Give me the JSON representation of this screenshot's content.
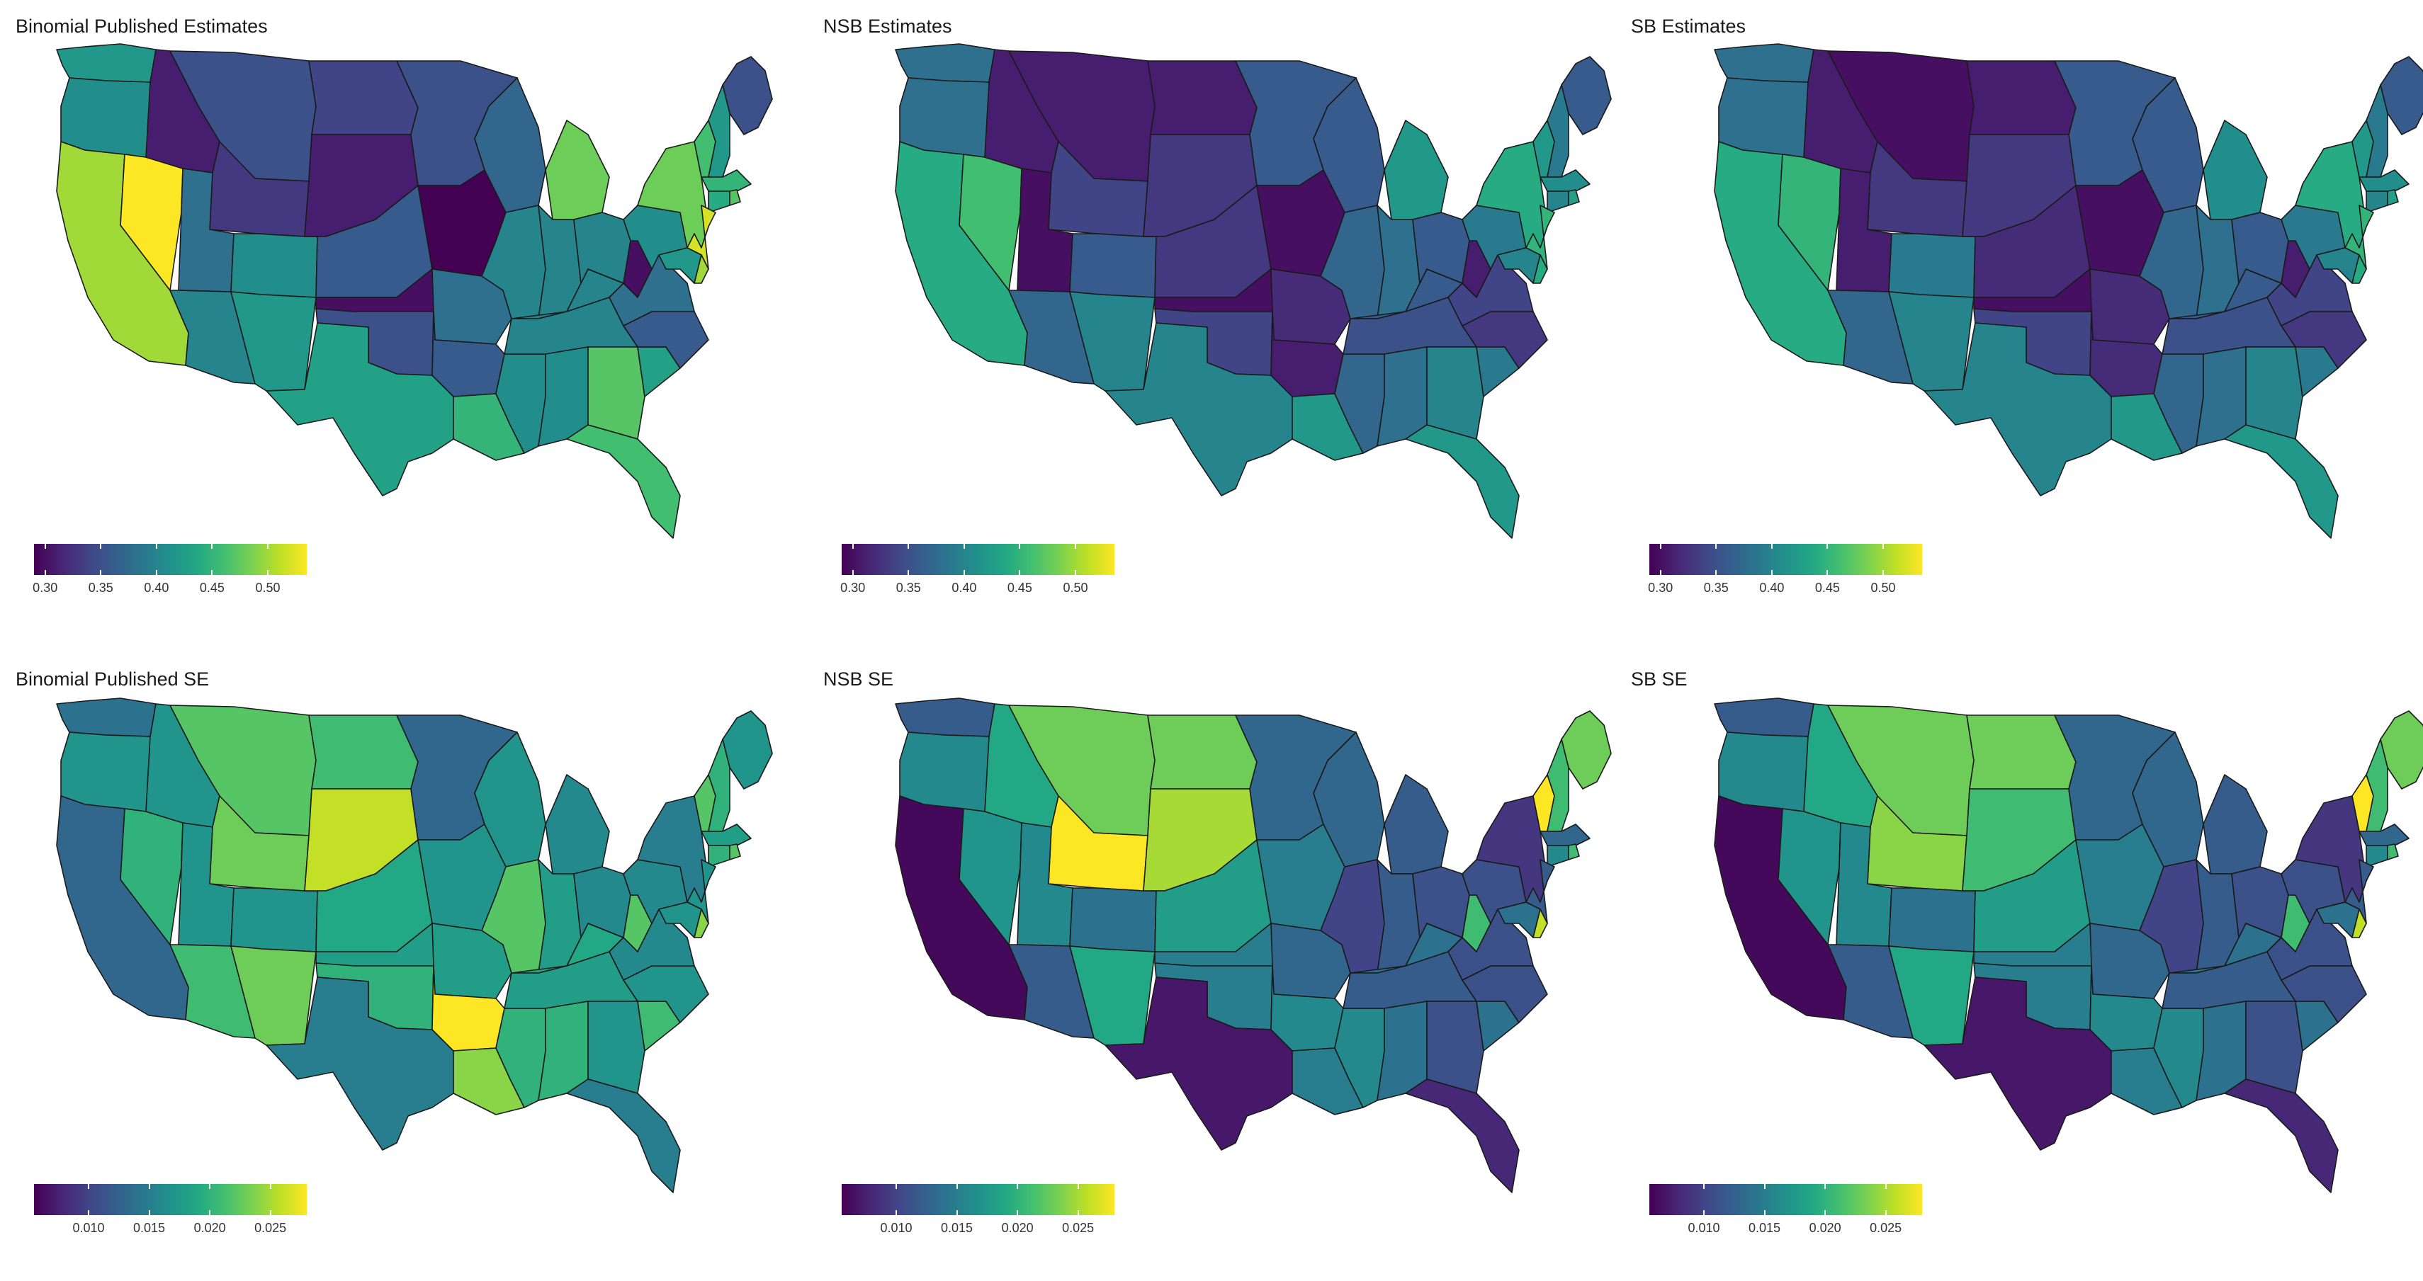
{
  "panels": [
    {
      "title": "Binomial Published Estimates",
      "metric": "estimate",
      "variant": "pub"
    },
    {
      "title": "NSB Estimates",
      "metric": "estimate",
      "variant": "nsb"
    },
    {
      "title": "SB Estimates",
      "metric": "estimate",
      "variant": "sb"
    },
    {
      "title": "Binomial Published SE",
      "metric": "se",
      "variant": "pub"
    },
    {
      "title": "NSB SE",
      "metric": "se",
      "variant": "nsb"
    },
    {
      "title": "SB SE",
      "metric": "se",
      "variant": "sb"
    }
  ],
  "legends": {
    "estimate": {
      "min": 0.29,
      "max": 0.535,
      "ticks": [
        "0.30",
        "0.35",
        "0.40",
        "0.45",
        "0.50"
      ]
    },
    "se": {
      "min": 0.0055,
      "max": 0.028,
      "ticks": [
        "0.010",
        "0.015",
        "0.020",
        "0.025"
      ]
    }
  },
  "colors": {
    "palette": [
      "#440154",
      "#482475",
      "#414487",
      "#355f8d",
      "#2a788e",
      "#21918c",
      "#22a884",
      "#44bf70",
      "#7ad151",
      "#bddf26",
      "#fde725"
    ],
    "state_border": "#1a1a1a",
    "background": "#ffffff"
  },
  "chart_data": {
    "type": "choropleth",
    "regions": [
      "WA",
      "OR",
      "CA",
      "NV",
      "ID",
      "MT",
      "WY",
      "UT",
      "AZ",
      "CO",
      "NM",
      "ND",
      "SD",
      "NE",
      "KS",
      "OK",
      "TX",
      "MN",
      "IA",
      "MO",
      "AR",
      "LA",
      "WI",
      "IL",
      "MS",
      "MI",
      "IN",
      "KY",
      "TN",
      "AL",
      "OH",
      "GA",
      "FL",
      "WV",
      "SC",
      "NC",
      "VA",
      "PA",
      "NY",
      "ME",
      "VT",
      "NH",
      "MA",
      "CT",
      "NJ",
      "MD",
      "DE",
      "RI"
    ],
    "values": {
      "estimate_pub": {
        "WA": 0.42,
        "OR": 0.41,
        "CA": 0.5,
        "NV": 0.535,
        "ID": 0.31,
        "MT": 0.35,
        "WY": 0.33,
        "UT": 0.38,
        "AZ": 0.4,
        "CO": 0.41,
        "NM": 0.42,
        "ND": 0.34,
        "SD": 0.31,
        "NE": 0.36,
        "KS": 0.3,
        "OK": 0.35,
        "TX": 0.43,
        "MN": 0.35,
        "IA": 0.29,
        "MO": 0.38,
        "AR": 0.36,
        "LA": 0.45,
        "WI": 0.37,
        "IL": 0.4,
        "MS": 0.41,
        "MI": 0.48,
        "IN": 0.4,
        "KY": 0.4,
        "TN": 0.4,
        "AL": 0.41,
        "OH": 0.4,
        "GA": 0.47,
        "FL": 0.46,
        "WV": 0.3,
        "SC": 0.43,
        "NC": 0.36,
        "VA": 0.38,
        "PA": 0.41,
        "NY": 0.48,
        "ME": 0.35,
        "VT": 0.46,
        "NH": 0.42,
        "MA": 0.45,
        "CT": 0.44,
        "NJ": 0.52,
        "MD": 0.42,
        "DE": 0.5,
        "RI": 0.47
      },
      "estimate_nsb": {
        "WA": 0.38,
        "OR": 0.38,
        "CA": 0.44,
        "NV": 0.46,
        "ID": 0.31,
        "MT": 0.31,
        "WY": 0.34,
        "UT": 0.3,
        "AZ": 0.37,
        "CO": 0.36,
        "NM": 0.4,
        "ND": 0.31,
        "SD": 0.33,
        "NE": 0.33,
        "KS": 0.3,
        "OK": 0.34,
        "TX": 0.4,
        "MN": 0.36,
        "IA": 0.3,
        "MO": 0.32,
        "AR": 0.31,
        "LA": 0.42,
        "WI": 0.36,
        "IL": 0.37,
        "MS": 0.37,
        "MI": 0.42,
        "IN": 0.38,
        "KY": 0.36,
        "TN": 0.35,
        "AL": 0.38,
        "OH": 0.36,
        "GA": 0.4,
        "FL": 0.42,
        "WV": 0.31,
        "SC": 0.39,
        "NC": 0.33,
        "VA": 0.34,
        "PA": 0.39,
        "NY": 0.44,
        "ME": 0.36,
        "VT": 0.42,
        "NH": 0.39,
        "MA": 0.41,
        "CT": 0.4,
        "NJ": 0.45,
        "MD": 0.4,
        "DE": 0.44,
        "RI": 0.43
      },
      "estimate_sb": {
        "WA": 0.38,
        "OR": 0.38,
        "CA": 0.44,
        "NV": 0.45,
        "ID": 0.31,
        "MT": 0.3,
        "WY": 0.33,
        "UT": 0.31,
        "AZ": 0.37,
        "CO": 0.39,
        "NM": 0.4,
        "ND": 0.31,
        "SD": 0.33,
        "NE": 0.32,
        "KS": 0.3,
        "OK": 0.34,
        "TX": 0.4,
        "MN": 0.36,
        "IA": 0.3,
        "MO": 0.32,
        "AR": 0.32,
        "LA": 0.42,
        "WI": 0.36,
        "IL": 0.37,
        "MS": 0.37,
        "MI": 0.41,
        "IN": 0.38,
        "KY": 0.36,
        "TN": 0.35,
        "AL": 0.38,
        "OH": 0.36,
        "GA": 0.4,
        "FL": 0.42,
        "WV": 0.31,
        "SC": 0.39,
        "NC": 0.33,
        "VA": 0.34,
        "PA": 0.39,
        "NY": 0.44,
        "ME": 0.36,
        "VT": 0.42,
        "NH": 0.39,
        "MA": 0.41,
        "CT": 0.4,
        "NJ": 0.45,
        "MD": 0.4,
        "DE": 0.44,
        "RI": 0.43
      },
      "se_pub": {
        "WA": 0.014,
        "OR": 0.017,
        "CA": 0.013,
        "NV": 0.02,
        "ID": 0.017,
        "MT": 0.022,
        "WY": 0.023,
        "UT": 0.017,
        "AZ": 0.021,
        "CO": 0.017,
        "NM": 0.023,
        "ND": 0.021,
        "SD": 0.026,
        "NE": 0.019,
        "KS": 0.018,
        "OK": 0.02,
        "TX": 0.015,
        "MN": 0.013,
        "IA": 0.017,
        "MO": 0.018,
        "AR": 0.028,
        "LA": 0.024,
        "WI": 0.017,
        "IL": 0.022,
        "MS": 0.02,
        "MI": 0.016,
        "IN": 0.018,
        "KY": 0.019,
        "TN": 0.018,
        "AL": 0.02,
        "OH": 0.016,
        "GA": 0.017,
        "FL": 0.015,
        "WV": 0.022,
        "SC": 0.021,
        "NC": 0.017,
        "VA": 0.016,
        "PA": 0.016,
        "NY": 0.015,
        "ME": 0.017,
        "VT": 0.022,
        "NH": 0.02,
        "MA": 0.018,
        "CT": 0.02,
        "NJ": 0.017,
        "MD": 0.017,
        "DE": 0.024,
        "RI": 0.022
      },
      "se_nsb": {
        "WA": 0.012,
        "OR": 0.016,
        "CA": 0.006,
        "NV": 0.017,
        "ID": 0.019,
        "MT": 0.023,
        "WY": 0.028,
        "UT": 0.016,
        "AZ": 0.012,
        "CO": 0.014,
        "NM": 0.019,
        "ND": 0.023,
        "SD": 0.025,
        "NE": 0.018,
        "KS": 0.015,
        "OK": 0.015,
        "TX": 0.007,
        "MN": 0.013,
        "IA": 0.015,
        "MO": 0.013,
        "AR": 0.016,
        "LA": 0.015,
        "WI": 0.013,
        "IL": 0.01,
        "MS": 0.016,
        "MI": 0.012,
        "IN": 0.012,
        "KY": 0.014,
        "TN": 0.012,
        "AL": 0.014,
        "OH": 0.011,
        "GA": 0.011,
        "FL": 0.008,
        "WV": 0.021,
        "SC": 0.014,
        "NC": 0.011,
        "VA": 0.011,
        "PA": 0.011,
        "NY": 0.009,
        "ME": 0.023,
        "VT": 0.028,
        "NH": 0.021,
        "MA": 0.013,
        "CT": 0.016,
        "NJ": 0.012,
        "MD": 0.014,
        "DE": 0.026,
        "RI": 0.021
      },
      "se_sb": {
        "WA": 0.012,
        "OR": 0.016,
        "CA": 0.006,
        "NV": 0.017,
        "ID": 0.019,
        "MT": 0.023,
        "WY": 0.024,
        "UT": 0.016,
        "AZ": 0.012,
        "CO": 0.014,
        "NM": 0.019,
        "ND": 0.023,
        "SD": 0.021,
        "NE": 0.018,
        "KS": 0.015,
        "OK": 0.015,
        "TX": 0.007,
        "MN": 0.013,
        "IA": 0.015,
        "MO": 0.013,
        "AR": 0.016,
        "LA": 0.015,
        "WI": 0.013,
        "IL": 0.01,
        "MS": 0.016,
        "MI": 0.012,
        "IN": 0.012,
        "KY": 0.014,
        "TN": 0.012,
        "AL": 0.014,
        "OH": 0.011,
        "GA": 0.011,
        "FL": 0.008,
        "WV": 0.021,
        "SC": 0.014,
        "NC": 0.011,
        "VA": 0.011,
        "PA": 0.011,
        "NY": 0.009,
        "ME": 0.023,
        "VT": 0.028,
        "NH": 0.021,
        "MA": 0.013,
        "CT": 0.016,
        "NJ": 0.012,
        "MD": 0.014,
        "DE": 0.026,
        "RI": 0.021
      }
    }
  }
}
